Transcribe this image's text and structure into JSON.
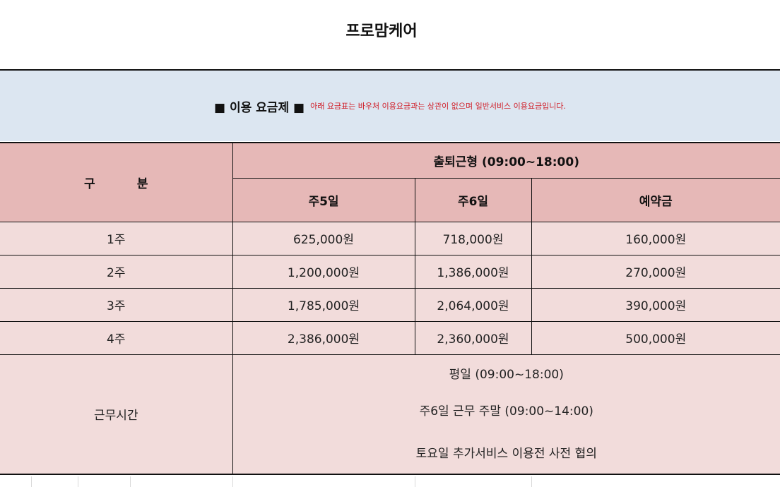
{
  "title": "프로맘케어",
  "banner": {
    "heading": "■ 이용 요금제 ■",
    "note": "아래 요금표는 바우처 이용요금과는 상관이 없으며 일반서비스 이용요금입니다."
  },
  "table": {
    "category_header": "구          분",
    "group_header": "출퇴근형 (09:00~18:00)",
    "columns": [
      "주5일",
      "주6일",
      "예약금"
    ],
    "rows": [
      {
        "label": "1주",
        "values": [
          "625,000원",
          "718,000원",
          "160,000원"
        ]
      },
      {
        "label": "2주",
        "values": [
          "1,200,000원",
          "1,386,000원",
          "270,000원"
        ]
      },
      {
        "label": "3주",
        "values": [
          "1,785,000원",
          "2,064,000원",
          "390,000원"
        ]
      },
      {
        "label": "4주",
        "values": [
          "2,386,000원",
          "2,360,000원",
          "500,000원"
        ]
      }
    ],
    "hours_label": "근무시간",
    "hours_lines": [
      "평일 (09:00~18:00)",
      "주6일 근무 주말 (09:00~14:00)",
      "토요일 추가서비스 이용전 사전 협의"
    ]
  }
}
